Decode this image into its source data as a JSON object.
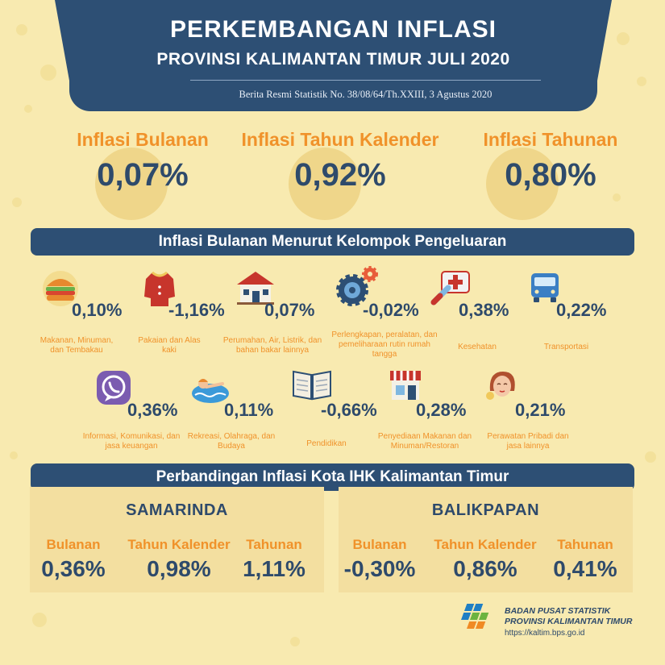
{
  "header": {
    "title": "PERKEMBANGAN INFLASI",
    "subtitle": "PROVINSI KALIMANTAN TIMUR JULI 2020",
    "release": "Berita Resmi Statistik No. 38/08/64/Th.XXIII, 3 Agustus 2020"
  },
  "summary": [
    {
      "label": "Inflasi Bulanan",
      "value": "0,07%"
    },
    {
      "label": "Inflasi Tahun Kalender",
      "value": "0,92%"
    },
    {
      "label": "Inflasi Tahunan",
      "value": "0,80%"
    }
  ],
  "groups_title": "Inflasi Bulanan Menurut Kelompok Pengeluaran",
  "groups": [
    {
      "value": "0,10%",
      "label": "Makanan, Minuman, dan Tembakau",
      "icon": "burger-icon"
    },
    {
      "value": "-1,16%",
      "label": "Pakaian dan Alas kaki",
      "icon": "shirt-icon"
    },
    {
      "value": "0,07%",
      "label": "Perumahan, Air, Listrik, dan bahan bakar lainnya",
      "icon": "house-icon"
    },
    {
      "value": "-0,02%",
      "label": "Perlengkapan, peralatan, dan pemeliharaan rutin rumah tangga",
      "icon": "gear-icon"
    },
    {
      "value": "0,38%",
      "label": "Kesehatan",
      "icon": "medical-kit-icon"
    },
    {
      "value": "0,22%",
      "label": "Transportasi",
      "icon": "bus-icon"
    },
    {
      "value": "0,36%",
      "label": "Informasi, Komunikasi, dan jasa keuangan",
      "icon": "phone-app-icon"
    },
    {
      "value": "0,11%",
      "label": "Rekreasi, Olahraga, dan Budaya",
      "icon": "swimmer-icon"
    },
    {
      "value": "-0,66%",
      "label": "Pendidikan",
      "icon": "book-icon"
    },
    {
      "value": "0,28%",
      "label": "Penyediaan Makanan dan Minuman/Restoran",
      "icon": "shop-icon"
    },
    {
      "value": "0,21%",
      "label": "Perawatan Pribadi dan jasa lainnya",
      "icon": "face-care-icon"
    }
  ],
  "compare_title": "Perbandingan Inflasi Kota IHK Kalimantan Timur",
  "cities": [
    {
      "name": "SAMARINDA",
      "items": [
        {
          "label": "Bulanan",
          "value": "0,36%"
        },
        {
          "label": "Tahun Kalender",
          "value": "0,98%"
        },
        {
          "label": "Tahunan",
          "value": "1,11%"
        }
      ]
    },
    {
      "name": "BALIKPAPAN",
      "items": [
        {
          "label": "Bulanan",
          "value": "-0,30%"
        },
        {
          "label": "Tahun Kalender",
          "value": "0,86%"
        },
        {
          "label": "Tahunan",
          "value": "0,41%"
        }
      ]
    }
  ],
  "footer": {
    "org": "BADAN PUSAT STATISTIK",
    "province": "PROVINSI KALIMANTAN TIMUR",
    "url": "https://kaltim.bps.go.id",
    "logo": "bps-logo-icon"
  },
  "colors": {
    "background": "#f8eab0",
    "navy": "#2d4f74",
    "orange": "#f0922a",
    "value_text": "#2e4a6b"
  }
}
